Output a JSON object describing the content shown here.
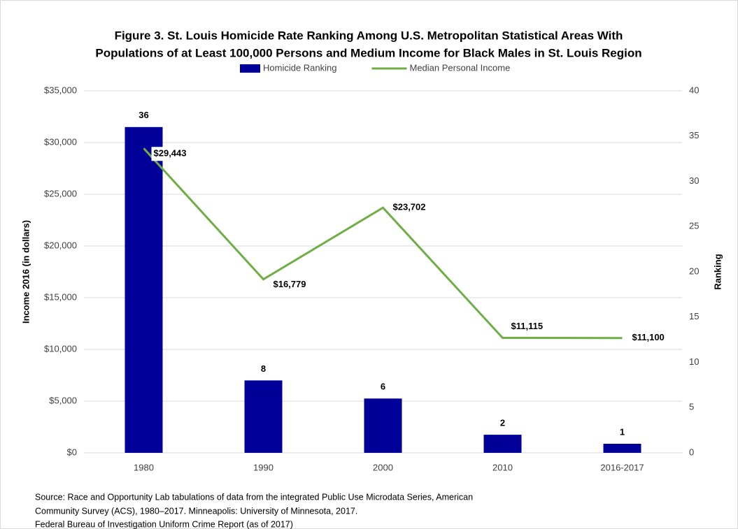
{
  "chart_data": {
    "type": "combo",
    "title": [
      "Figure 3. St. Louis Homicide Rate Ranking Among U.S. Metropolitan Statistical Areas With",
      "Populations of at Least 100,000 Persons and Medium Income for Black Males in St. Louis Region"
    ],
    "y_label": "Income 2016 (in dollars)",
    "y2_label": "Ranking",
    "categories": [
      "1980",
      "1990",
      "2000",
      "2010",
      "2016-2017"
    ],
    "series": [
      {
        "name": "Homicide Ranking",
        "type": "bar",
        "axis": "y2",
        "color": "#000099",
        "values": [
          36,
          8,
          6,
          2,
          1
        ]
      },
      {
        "name": "Median Personal Income",
        "type": "line",
        "axis": "y",
        "color": "#70ad47",
        "values": [
          29443,
          16779,
          23702,
          11115,
          11100
        ],
        "value_labels": [
          "$29,443",
          "$16,779",
          "$23,702",
          "$11,115",
          "$11,100"
        ]
      }
    ],
    "ylim": [
      0,
      35000
    ],
    "yticks": [
      {
        "value": 0,
        "label": "$0"
      },
      {
        "value": 5000,
        "label": "$5,000"
      },
      {
        "value": 10000,
        "label": "$10,000"
      },
      {
        "value": 15000,
        "label": "$15,000"
      },
      {
        "value": 20000,
        "label": "$20,000"
      },
      {
        "value": 25000,
        "label": "$25,000"
      },
      {
        "value": 30000,
        "label": "$30,000"
      },
      {
        "value": 35000,
        "label": "$35,000"
      }
    ],
    "y2lim": [
      0,
      40
    ],
    "y2ticks": [
      0,
      5,
      10,
      15,
      20,
      25,
      30,
      35,
      40
    ],
    "grid": true,
    "legend": "top",
    "source": [
      "Source: Race and Opportunity Lab tabulations of data from the integrated Public Use Microdata Series, American",
      "Community Survey (ACS), 1980–2017.  Minneapolis: University of Minnesota, 2017.",
      "Federal Bureau of Investigation Uniform Crime Report (as of 2017)"
    ]
  }
}
